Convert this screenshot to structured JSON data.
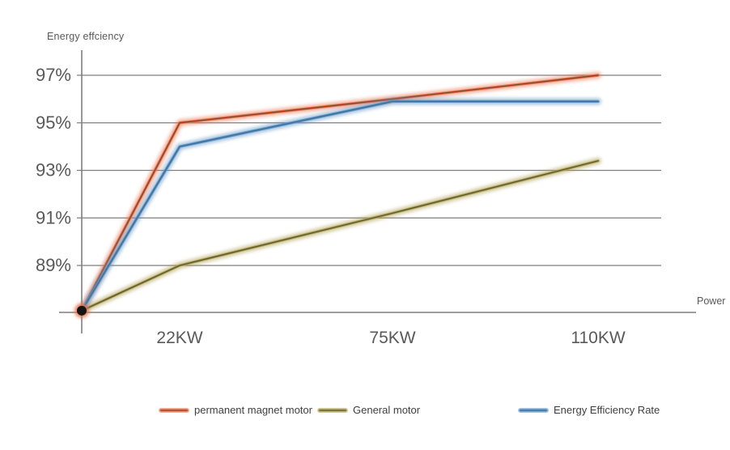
{
  "chart_data": {
    "type": "line",
    "title": "",
    "xlabel": "Power",
    "ylabel": "Energy effciency",
    "categories": [
      "22KW",
      "75KW",
      "110KW"
    ],
    "y_tick_labels": [
      "97%",
      "95%",
      "93%",
      "91%",
      "89%"
    ],
    "y_tick_values": [
      97,
      95,
      93,
      91,
      89
    ],
    "ylim": [
      87,
      97.6
    ],
    "grid": true,
    "legend_position": "bottom",
    "axis_color": "#7f7f7f",
    "tick_label_color": "#595959",
    "series": [
      {
        "name": "permanent magnet motor",
        "color": "#E8714B",
        "core_color": "#7E4026",
        "start_value": 87.1,
        "values": [
          95,
          96,
          97
        ]
      },
      {
        "name": "General motor",
        "color": "#AD9F51",
        "core_color": "#54522B",
        "start_value": 87.1,
        "values": [
          89,
          91.2,
          93.4
        ]
      },
      {
        "name": "Energy Efficiency Rate",
        "color": "#5E94C4",
        "core_color": "#3A6B96",
        "start_value": 87.1,
        "values": [
          94,
          95.9,
          95.9
        ]
      }
    ],
    "origin_marker": {
      "value": 87.1,
      "color": "#141414",
      "glow_color": "#E8714B"
    }
  }
}
